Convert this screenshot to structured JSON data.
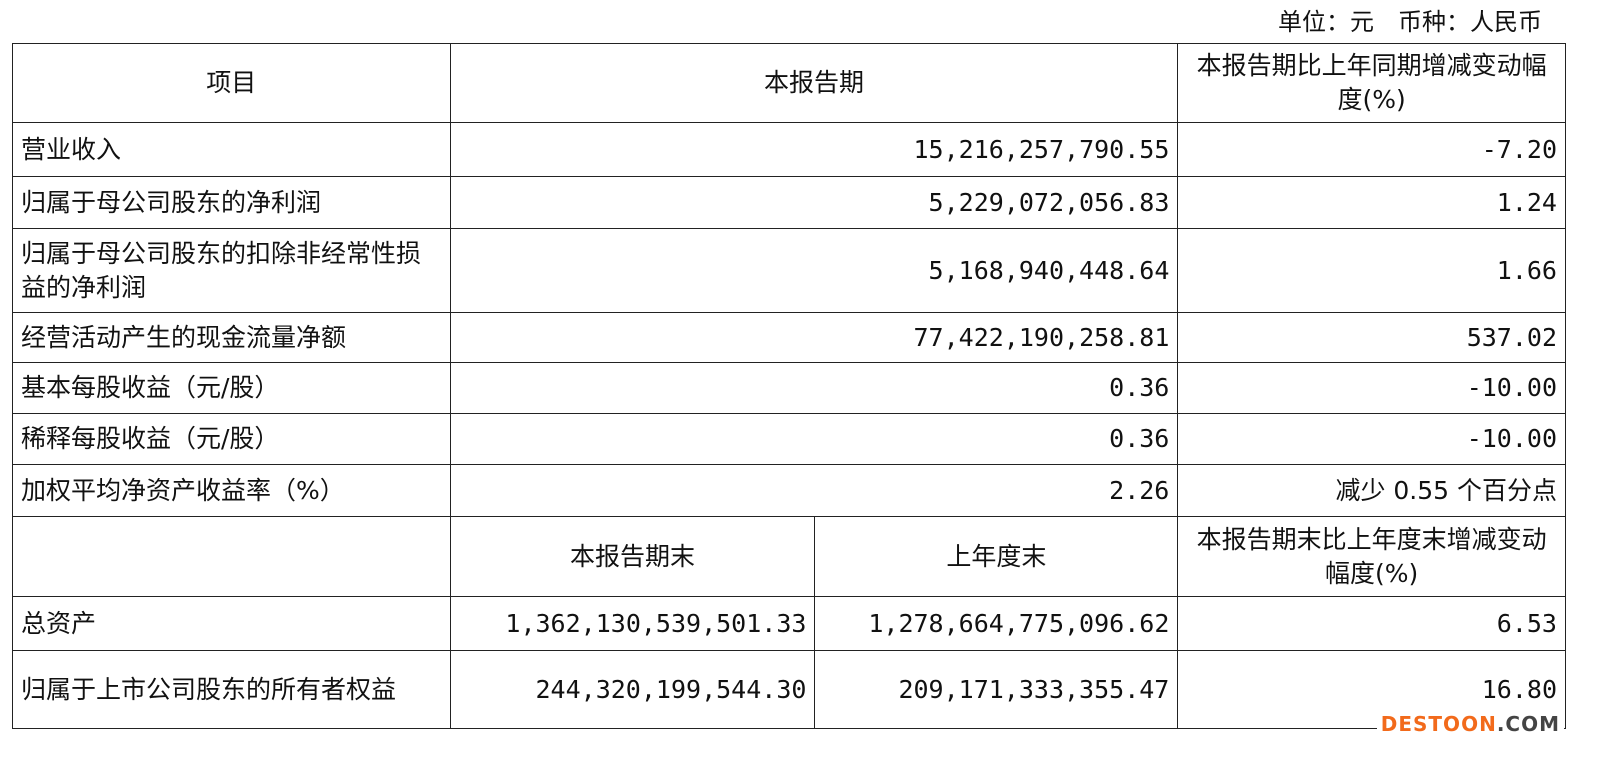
{
  "unit_note": "单位：元　币种：人民币",
  "header1": [
    "项目",
    "本报告期",
    "本报告期比上年同期增减变动幅度(%)"
  ],
  "rows1": [
    {
      "item": "营业收入",
      "current": "15,216,257,790.55",
      "change": "-7.20"
    },
    {
      "item": "归属于母公司股东的净利润",
      "current": "5,229,072,056.83",
      "change": "1.24"
    },
    {
      "item": "归属于母公司股东的扣除非经常性损益的净利润",
      "current": "5,168,940,448.64",
      "change": "1.66"
    },
    {
      "item": "经营活动产生的现金流量净额",
      "current": "77,422,190,258.81",
      "change": "537.02"
    },
    {
      "item": "基本每股收益（元/股）",
      "current": "0.36",
      "change": "-10.00"
    },
    {
      "item": "稀释每股收益（元/股）",
      "current": "0.36",
      "change": "-10.00"
    },
    {
      "item": "加权平均净资产收益率（%）",
      "current": "2.26",
      "change": "减少 0.55 个百分点"
    }
  ],
  "header2": [
    "",
    "本报告期末",
    "上年度末",
    "本报告期末比上年度末增减变动幅度(%)"
  ],
  "rows2": [
    {
      "item": "总资产",
      "current": "1,362,130,539,501.33",
      "prior": "1,278,664,775,096.62",
      "change": "6.53"
    },
    {
      "item": "归属于上市公司股东的所有者权益",
      "current": "244,320,199,544.30",
      "prior": "209,171,333,355.47",
      "change": "16.80"
    }
  ],
  "watermark": {
    "part1": "DESTOON",
    "part2": ".COM"
  }
}
